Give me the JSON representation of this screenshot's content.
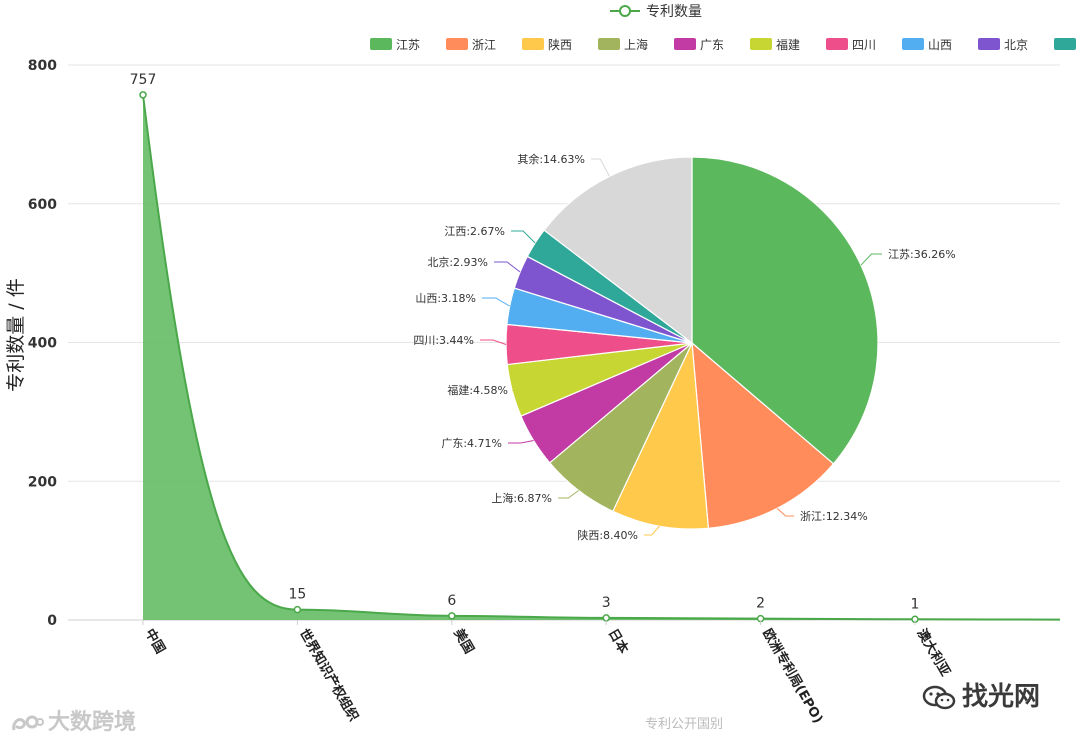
{
  "chart_data": [
    {
      "type": "area",
      "series_name": "专利数量",
      "categories": [
        "中国",
        "世界知识产权组织",
        "美国",
        "日本",
        "欧洲专利局(EPO)",
        "澳大利亚"
      ],
      "values": [
        757,
        15,
        6,
        3,
        2,
        1
      ],
      "ylabel": "专利数量 / 件",
      "xlabel": "专利公开国别",
      "ylim": [
        0,
        800
      ],
      "y_ticks": [
        0,
        200,
        400,
        600,
        800
      ],
      "grid": true,
      "color": "#5cb85c"
    },
    {
      "type": "pie",
      "slices": [
        {
          "name": "江苏",
          "value": 36.26,
          "label": "江苏:36.26%",
          "color": "#5cb85c"
        },
        {
          "name": "浙江",
          "value": 12.34,
          "label": "浙江:12.34%",
          "color": "#ff8c5a"
        },
        {
          "name": "陕西",
          "value": 8.4,
          "label": "陕西:8.40%",
          "color": "#ffc94b"
        },
        {
          "name": "上海",
          "value": 6.87,
          "label": "上海:6.87%",
          "color": "#a3b45e"
        },
        {
          "name": "广东",
          "value": 4.71,
          "label": "广东:4.71%",
          "color": "#c23aa3"
        },
        {
          "name": "福建",
          "value": 4.58,
          "label": "福建:4.58%",
          "color": "#c8d634"
        },
        {
          "name": "四川",
          "value": 3.44,
          "label": "四川:3.44%",
          "color": "#ee4f8a"
        },
        {
          "name": "山西",
          "value": 3.18,
          "label": "山西:3.18%",
          "color": "#52aef0"
        },
        {
          "name": "北京",
          "value": 2.93,
          "label": "北京:2.93%",
          "color": "#7e54cf"
        },
        {
          "name": "江西",
          "value": 2.67,
          "label": "江西:2.67%",
          "color": "#2fa89a"
        },
        {
          "name": "其余",
          "value": 14.63,
          "label": "其余:14.63%",
          "color": "#d8d8d8"
        }
      ],
      "legend_position": "top-right"
    }
  ],
  "watermarks": {
    "left": "大数跨境",
    "right": "找光网"
  }
}
